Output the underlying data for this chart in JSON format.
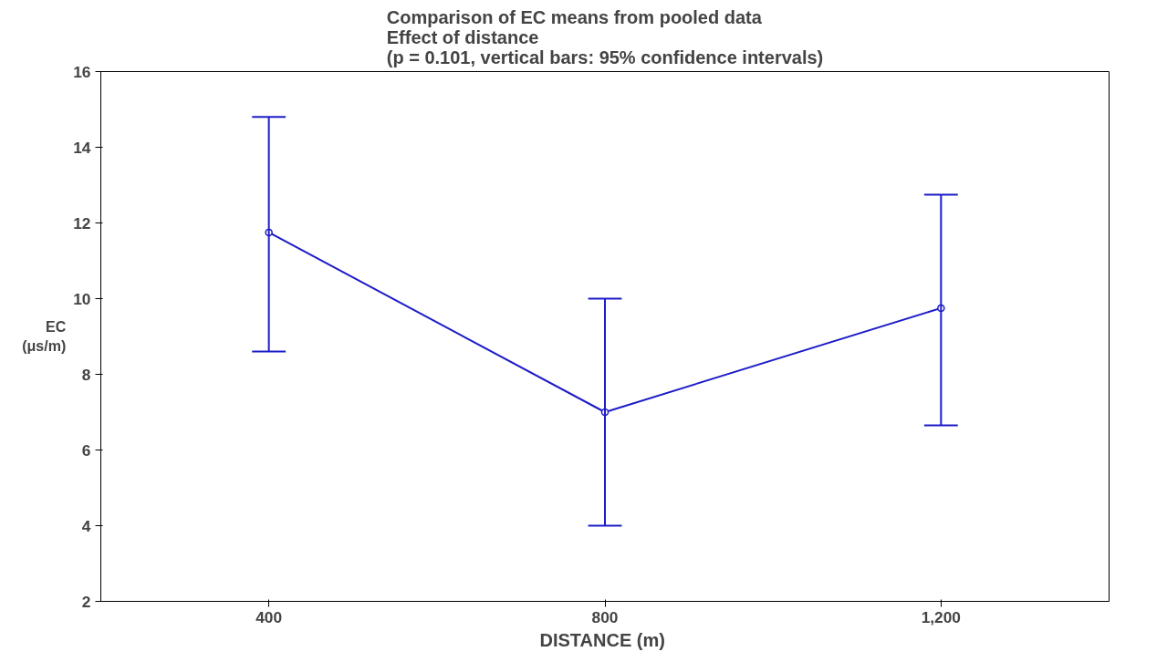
{
  "chart_data": {
    "type": "line",
    "title": "Comparison of EC means from pooled data\nEffect of distance\n(p = 0.101, vertical bars: 95% confidence intervals)",
    "xlabel": "DISTANCE  (m)",
    "ylabel": "EC\n(μs/m)",
    "categories": [
      "400",
      "800",
      "1,200"
    ],
    "series": [
      {
        "color": "#1c1cc8",
        "values": [
          11.75,
          7.0,
          9.75
        ],
        "errors": [
          [
            8.6,
            14.8
          ],
          [
            4.0,
            10.0
          ],
          [
            6.65,
            12.75
          ]
        ]
      }
    ],
    "ylim": [
      2,
      16
    ],
    "yticks": [
      2,
      4,
      6,
      8,
      10,
      12,
      14,
      16
    ],
    "grid": false,
    "marker": "circle",
    "line_style": "solid"
  }
}
